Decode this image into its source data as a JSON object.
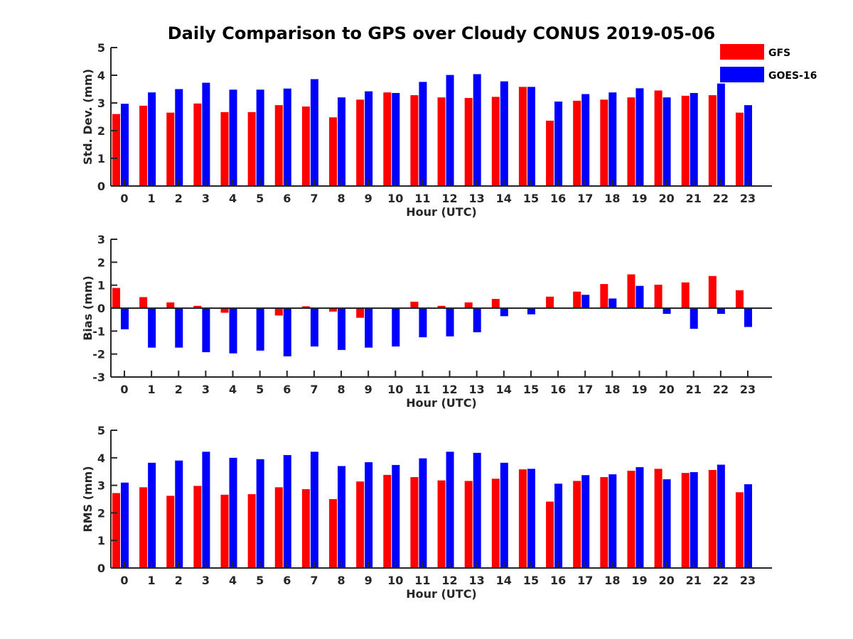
{
  "colors": {
    "gfs": "#ff0000",
    "goes": "#0000ff",
    "axis": "#262626"
  },
  "chart_data": {
    "type": "bar",
    "title": "Daily Comparison to GPS over Cloudy CONUS 2019-05-06",
    "legend": {
      "placement": "top-right",
      "entries": [
        {
          "name": "GFS",
          "color": "#ff0000"
        },
        {
          "name": "GOES-16",
          "color": "#0000ff"
        }
      ]
    },
    "panels": [
      {
        "id": "std",
        "ylabel": "Std. Dev. (mm)",
        "xlabel": "Hour (UTC)",
        "ylim": [
          0,
          5
        ],
        "yticks": [
          0,
          1,
          2,
          3,
          4,
          5
        ],
        "categories": [
          "0",
          "1",
          "2",
          "3",
          "4",
          "5",
          "6",
          "7",
          "8",
          "9",
          "10",
          "11",
          "12",
          "13",
          "14",
          "15",
          "16",
          "17",
          "18",
          "19",
          "20",
          "21",
          "22",
          "23"
        ],
        "series": [
          {
            "name": "GFS",
            "values": [
              2.6,
              2.9,
              2.65,
              2.98,
              2.67,
              2.67,
              2.92,
              2.87,
              2.48,
              3.12,
              3.38,
              3.28,
              3.2,
              3.18,
              3.22,
              3.58,
              2.36,
              3.08,
              3.12,
              3.2,
              3.45,
              3.26,
              3.28,
              2.65
            ]
          },
          {
            "name": "GOES-16",
            "values": [
              2.97,
              3.38,
              3.5,
              3.73,
              3.48,
              3.48,
              3.52,
              3.86,
              3.2,
              3.42,
              3.36,
              3.76,
              4.01,
              4.04,
              3.78,
              3.58,
              3.05,
              3.32,
              3.38,
              3.53,
              3.2,
              3.36,
              3.7,
              2.92
            ]
          }
        ]
      },
      {
        "id": "bias",
        "ylabel": "Bias (mm)",
        "xlabel": "Hour (UTC)",
        "ylim": [
          -3,
          3
        ],
        "yticks": [
          -3,
          -2,
          -1,
          0,
          1,
          2,
          3
        ],
        "categories": [
          "0",
          "1",
          "2",
          "3",
          "4",
          "5",
          "6",
          "7",
          "8",
          "9",
          "10",
          "11",
          "12",
          "13",
          "14",
          "15",
          "16",
          "17",
          "18",
          "19",
          "20",
          "21",
          "22",
          "23"
        ],
        "series": [
          {
            "name": "GFS",
            "values": [
              0.88,
              0.48,
              0.25,
              0.1,
              -0.2,
              0.0,
              -0.32,
              0.08,
              -0.15,
              -0.42,
              0.0,
              0.28,
              0.1,
              0.25,
              0.4,
              -0.03,
              0.5,
              0.72,
              1.05,
              1.47,
              1.02,
              1.12,
              1.4,
              0.78
            ]
          },
          {
            "name": "GOES-16",
            "values": [
              -0.92,
              -1.72,
              -1.72,
              -1.92,
              -1.97,
              -1.85,
              -2.1,
              -1.67,
              -1.82,
              -1.72,
              -1.67,
              -1.27,
              -1.23,
              -1.05,
              -0.35,
              -0.27,
              0.0,
              0.58,
              0.42,
              0.97,
              -0.25,
              -0.9,
              -0.25,
              -0.82
            ]
          }
        ]
      },
      {
        "id": "rms",
        "ylabel": "RMS (mm)",
        "xlabel": "Hour (UTC)",
        "ylim": [
          0,
          5
        ],
        "yticks": [
          0,
          1,
          2,
          3,
          4,
          5
        ],
        "categories": [
          "0",
          "1",
          "2",
          "3",
          "4",
          "5",
          "6",
          "7",
          "8",
          "9",
          "10",
          "11",
          "12",
          "13",
          "14",
          "15",
          "16",
          "17",
          "18",
          "19",
          "20",
          "21",
          "22",
          "23"
        ],
        "series": [
          {
            "name": "GFS",
            "values": [
              2.72,
              2.93,
              2.62,
              2.98,
              2.66,
              2.68,
              2.93,
              2.86,
              2.5,
              3.14,
              3.38,
              3.3,
              3.18,
              3.16,
              3.24,
              3.58,
              2.41,
              3.16,
              3.3,
              3.53,
              3.6,
              3.45,
              3.56,
              2.75
            ]
          },
          {
            "name": "GOES-16",
            "values": [
              3.1,
              3.82,
              3.9,
              4.22,
              4.0,
              3.95,
              4.1,
              4.22,
              3.7,
              3.84,
              3.74,
              3.98,
              4.22,
              4.18,
              3.82,
              3.6,
              3.06,
              3.37,
              3.4,
              3.66,
              3.22,
              3.48,
              3.75,
              3.04
            ]
          }
        ]
      }
    ]
  }
}
